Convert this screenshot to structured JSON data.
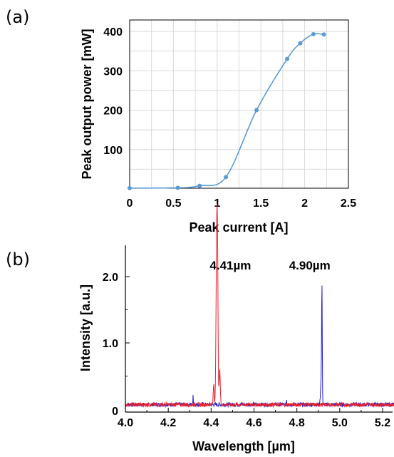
{
  "chart_data": [
    {
      "panel_label": "(a)",
      "type": "line",
      "xlabel": "Peak current [A]",
      "ylabel": "Peak output power [mW]",
      "xlim": [
        0,
        2.5
      ],
      "ylim": [
        0,
        450
      ],
      "x_ticks": [
        "0",
        "0.5",
        "1",
        "1.5",
        "2",
        "2.5"
      ],
      "y_ticks": [
        "100",
        "200",
        "300",
        "400"
      ],
      "grid": true,
      "line_color": "#5b9bd5",
      "series": [
        {
          "x": [
            0.0,
            0.55,
            0.8,
            1.1,
            1.45,
            1.8,
            1.95,
            2.1,
            2.22
          ],
          "y": [
            2,
            3,
            8,
            30,
            200,
            330,
            370,
            393,
            392
          ]
        }
      ]
    },
    {
      "panel_label": "(b)",
      "type": "line",
      "xlabel": "Wavelength [µm]",
      "ylabel": "Intensity [a.u.]",
      "xlim": [
        4.0,
        5.28
      ],
      "ylim": [
        0,
        2.45
      ],
      "x_ticks": [
        "4.0",
        "4.2",
        "4.4",
        "4.6",
        "4.8",
        "5.0",
        "5.2"
      ],
      "y_ticks": [
        "0",
        "1.0",
        "2.0"
      ],
      "grid": false,
      "annotations": [
        {
          "text": "4.41µm",
          "x": 4.49,
          "y": 2.17
        },
        {
          "text": "4.90µm",
          "x": 4.86,
          "y": 2.17
        }
      ],
      "series": [
        {
          "color": "#e8202a",
          "peak_x": 4.426,
          "peak_y": 2.32
        },
        {
          "color": "#1f1fd0",
          "peak_x": 4.917,
          "peak_y": 1.7
        }
      ]
    }
  ]
}
